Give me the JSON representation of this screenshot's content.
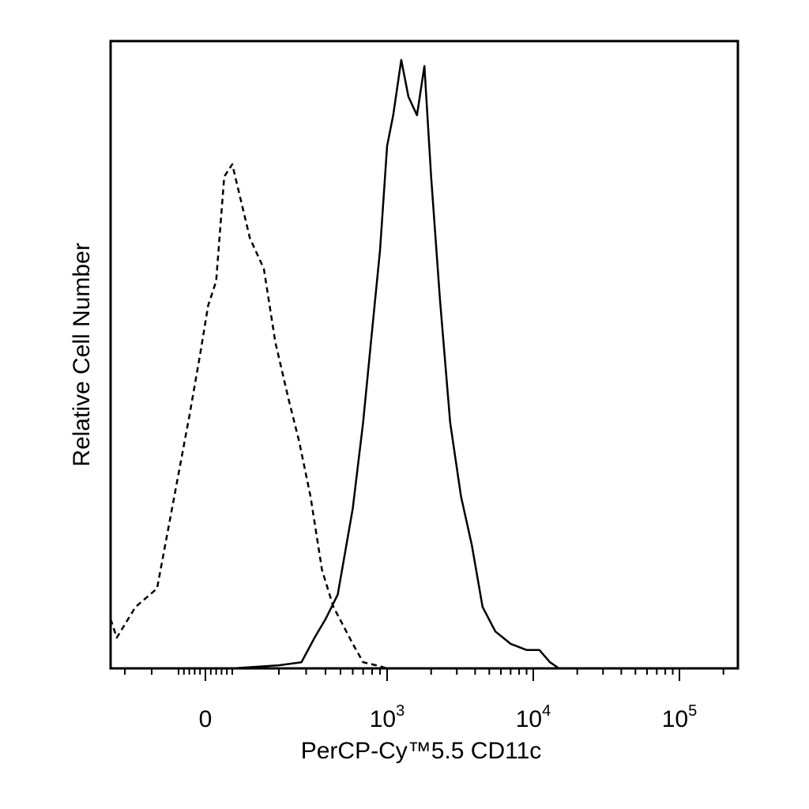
{
  "chart_data": {
    "type": "line",
    "title": "",
    "xlabel": "PerCP-Cy™5.5 CD11c",
    "ylabel": "Relative Cell Number",
    "x_scale": "biexponential",
    "xlim": [
      -400,
      250000
    ],
    "ylim": [
      0,
      1.0
    ],
    "grid": false,
    "legend": "none",
    "x_tick_labels": [
      {
        "value": 0,
        "base": "0",
        "exp": ""
      },
      {
        "value": 1000,
        "base": "10",
        "exp": "3"
      },
      {
        "value": 10000,
        "base": "10",
        "exp": "4"
      },
      {
        "value": 100000,
        "base": "10",
        "exp": "5"
      }
    ],
    "series": [
      {
        "style": "dashed",
        "x": [
          -400,
          -330,
          -260,
          -180,
          -120,
          -60,
          -20,
          10,
          40,
          70,
          100,
          130,
          160,
          190,
          230,
          270,
          320,
          380,
          450,
          520,
          600,
          700,
          850,
          1000,
          1500,
          3000,
          10000,
          25000
        ],
        "y": [
          0.08,
          0.05,
          0.1,
          0.13,
          0.27,
          0.41,
          0.51,
          0.59,
          0.63,
          0.8,
          0.82,
          0.7,
          0.65,
          0.53,
          0.44,
          0.37,
          0.28,
          0.16,
          0.1,
          0.07,
          0.04,
          0.01,
          0.005,
          0.0,
          0.0,
          0.0,
          0.0,
          0.0
        ]
      },
      {
        "style": "solid",
        "x": [
          -400,
          100,
          200,
          280,
          340,
          400,
          480,
          600,
          700,
          800,
          900,
          1000,
          1100,
          1250,
          1400,
          1600,
          1800,
          2000,
          2300,
          2700,
          3200,
          3800,
          4500,
          5500,
          7000,
          9000,
          11000,
          13000,
          15000,
          25000,
          100000,
          250000
        ],
        "y": [
          0.0,
          0.0,
          0.005,
          0.01,
          0.05,
          0.08,
          0.12,
          0.26,
          0.4,
          0.55,
          0.68,
          0.85,
          0.9,
          0.99,
          0.93,
          0.9,
          0.98,
          0.8,
          0.6,
          0.4,
          0.28,
          0.2,
          0.1,
          0.06,
          0.04,
          0.03,
          0.03,
          0.01,
          0.0,
          0.0,
          0.0,
          0.0
        ]
      }
    ]
  }
}
